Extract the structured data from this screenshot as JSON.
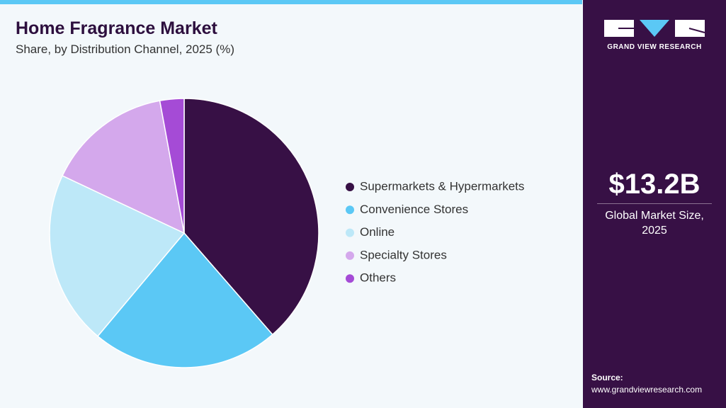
{
  "chart_data": {
    "type": "pie",
    "title": "Home Fragrance Market",
    "subtitle": "Share, by Distribution Channel, 2025 (%)",
    "categories": [
      "Supermarkets & Hypermarkets",
      "Convenience Stores",
      "Online",
      "Specialty Stores",
      "Others"
    ],
    "values": [
      38.6,
      22.5,
      20.9,
      15.1,
      2.9
    ],
    "colors": [
      "#371045",
      "#5bc8f5",
      "#bde8f8",
      "#d4a8ec",
      "#a54bd6"
    ],
    "legend": "right"
  },
  "brand": "GRAND VIEW RESEARCH",
  "market_size": "$13.2B",
  "market_size_label": "Global Market Size, 2025",
  "source_label": "Source:",
  "source_url": "www.grandviewresearch.com"
}
